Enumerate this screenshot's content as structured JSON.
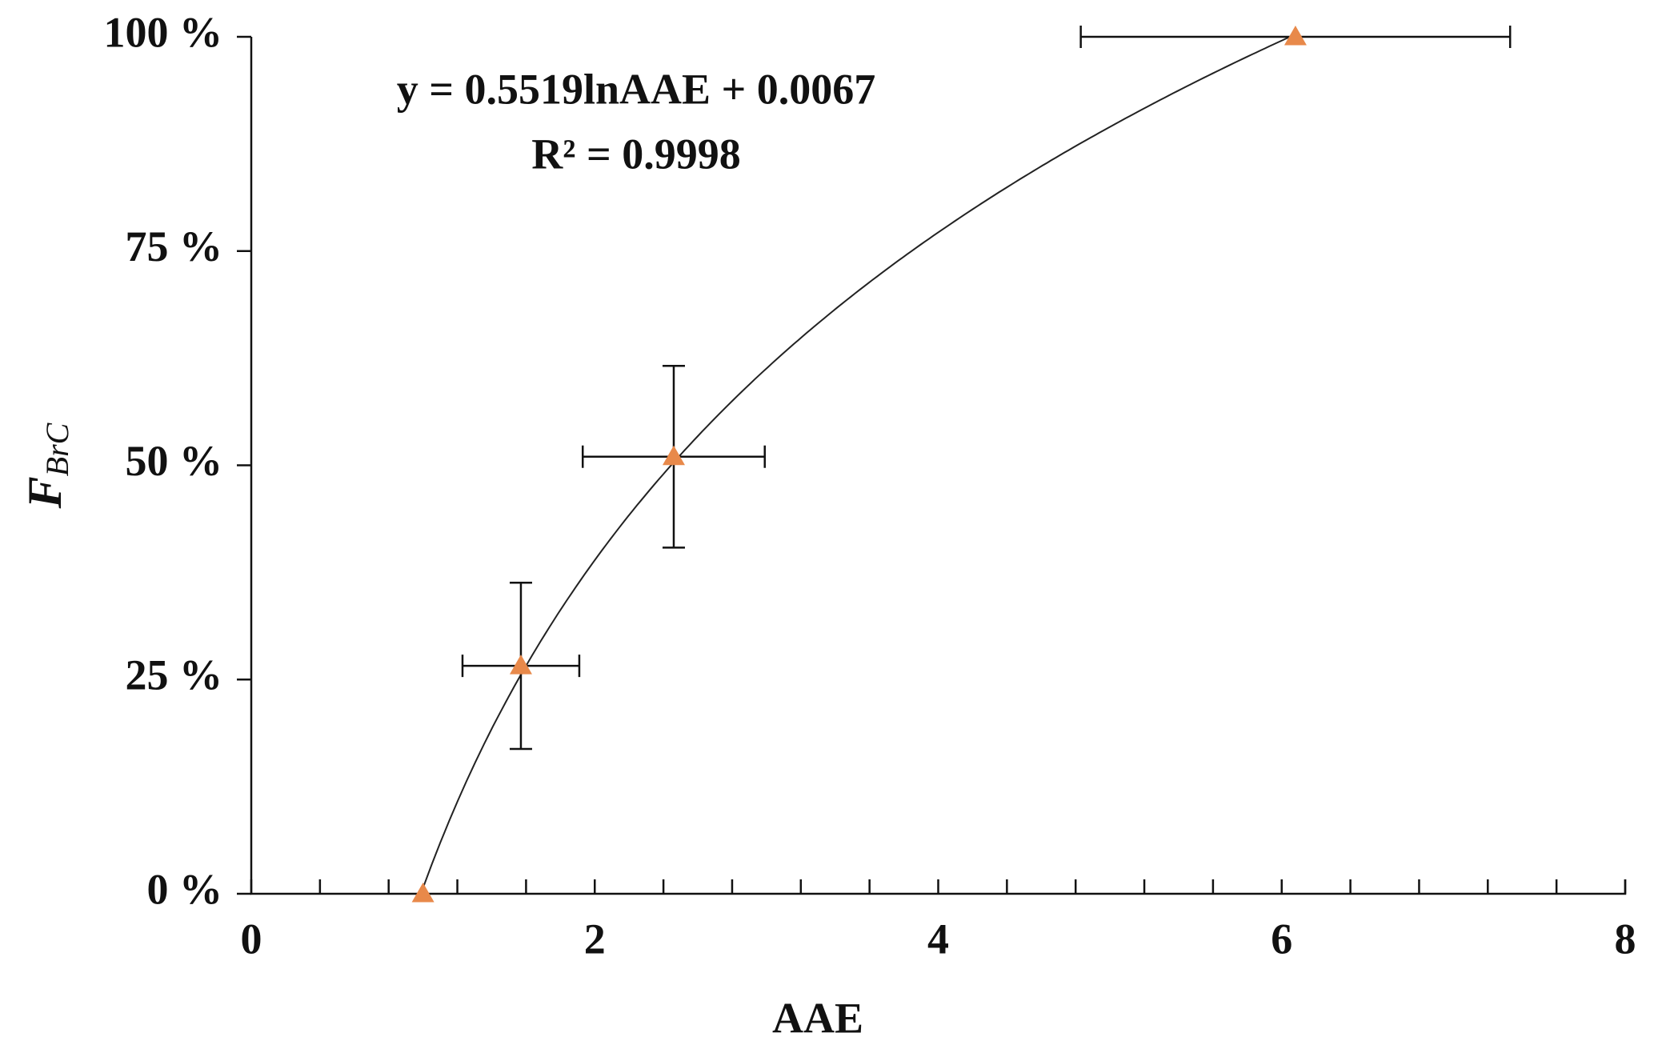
{
  "chart_data": {
    "type": "scatter",
    "x_label": "AAE",
    "y_label": {
      "main": "F",
      "subscript": "BrC"
    },
    "equation": "y = 0.5519lnAAE + 0.0067",
    "r_squared": "R² = 0.9998",
    "trendline": {
      "type": "log",
      "a": 0.5519,
      "b": 0.0067
    },
    "x": [
      1.0,
      1.57,
      2.46,
      6.08
    ],
    "series": [
      {
        "color": "#e8894a",
        "values": [
          0,
          0.266,
          0.51,
          1
        ],
        "x_errors": [
          null,
          0.34,
          0.53,
          1.25
        ],
        "y_errors": [
          null,
          0.097,
          0.106,
          null
        ]
      }
    ],
    "xlim": [
      0,
      8
    ],
    "xticks": [
      0,
      2,
      4,
      6,
      8
    ],
    "ylim": [
      0,
      1
    ],
    "yticks": [
      {
        "value": 0,
        "label": "0 %"
      },
      {
        "value": 0.25,
        "label": "25 %"
      },
      {
        "value": 0.5,
        "label": "50 %"
      },
      {
        "value": 0.75,
        "label": "75 %"
      },
      {
        "value": 1,
        "label": "100 %"
      }
    ]
  }
}
